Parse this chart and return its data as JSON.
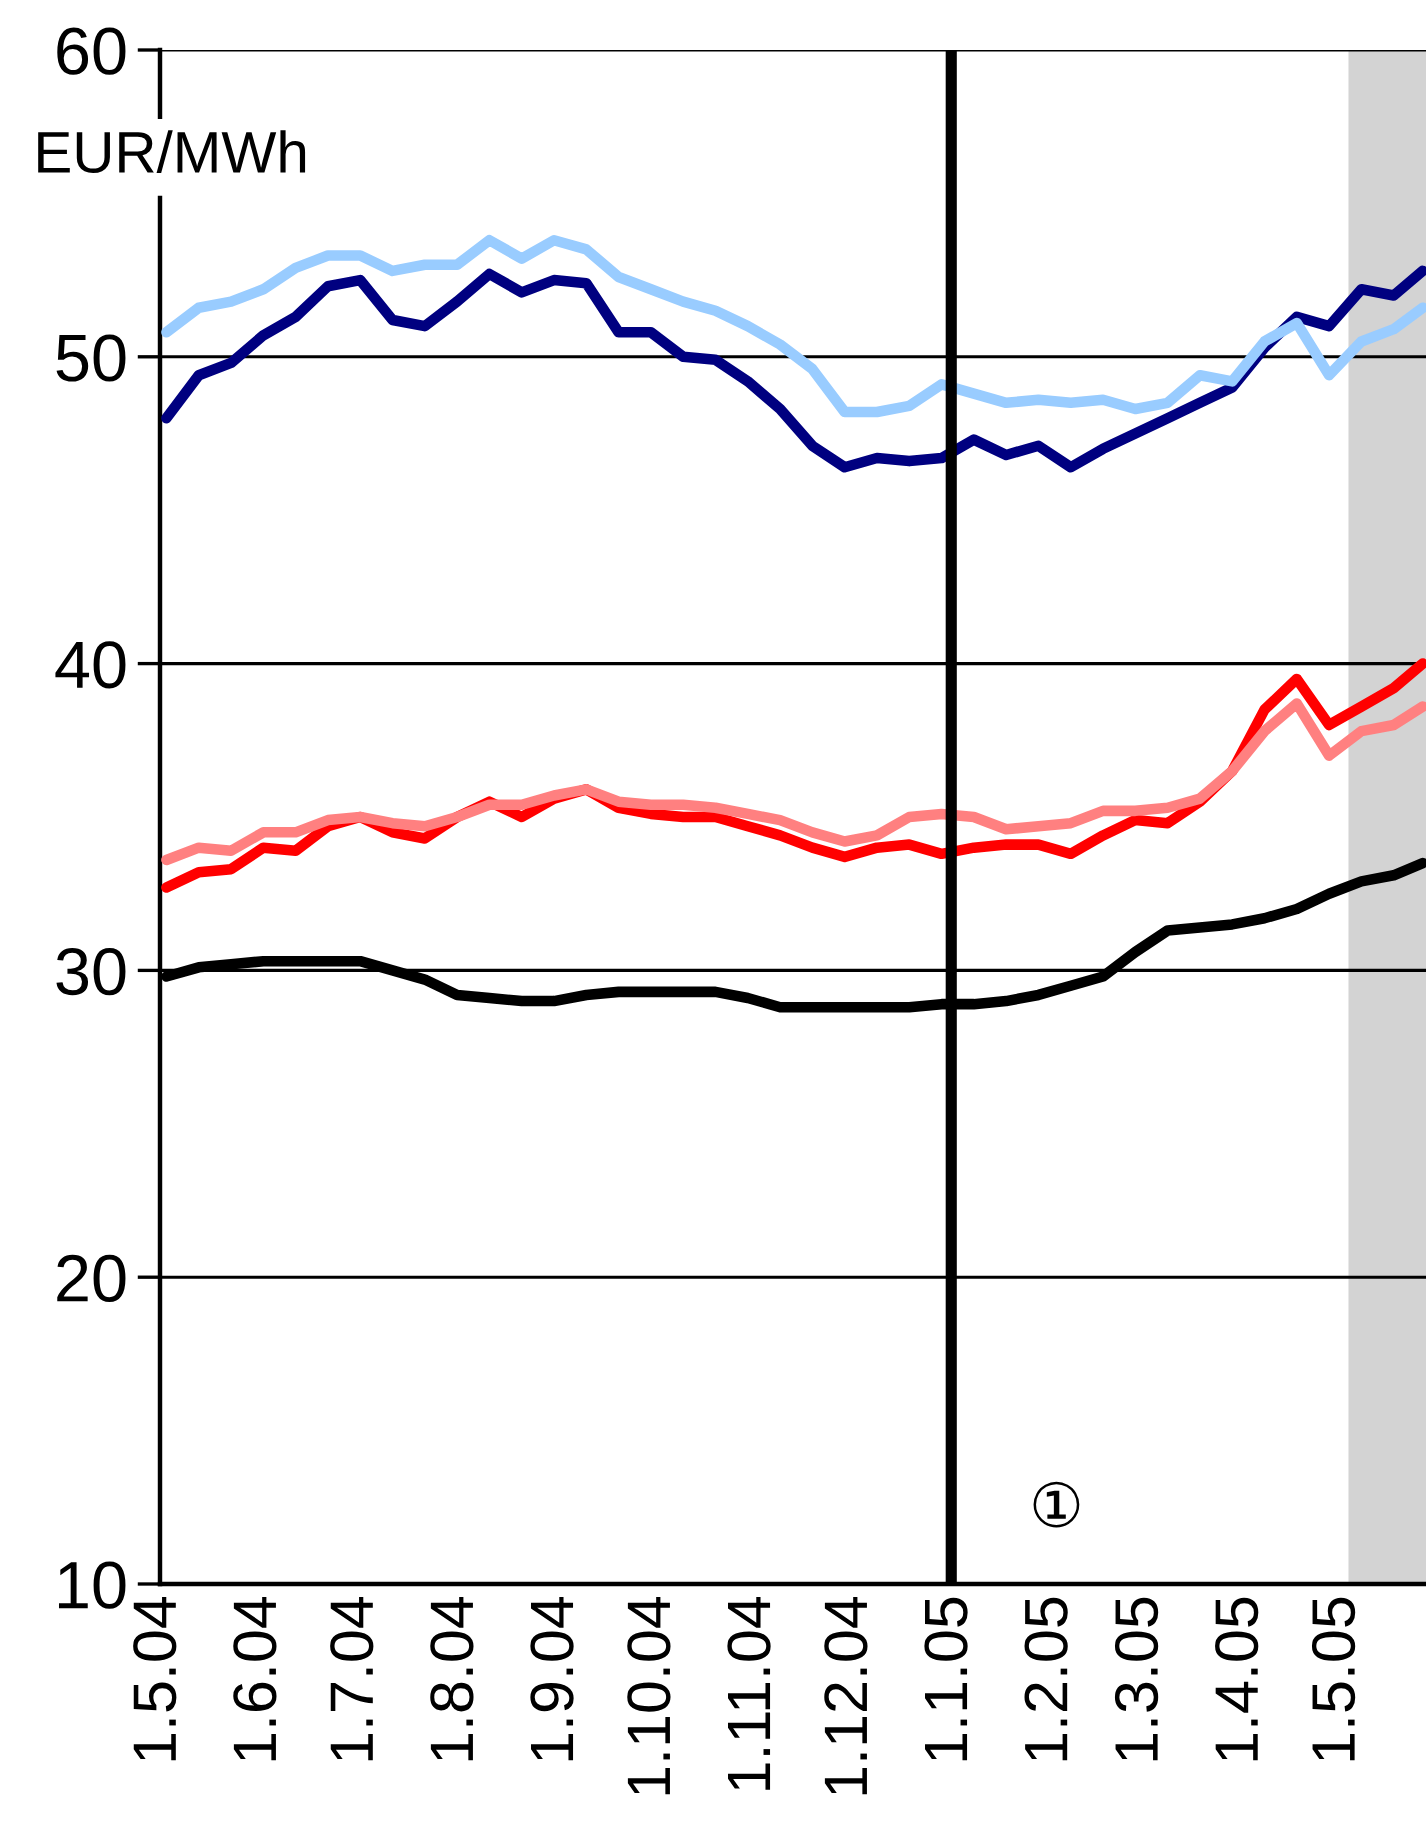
{
  "chart_data": {
    "type": "line",
    "ylabel": "EUR/MWh",
    "x": [
      "2004-05-03",
      "2004-05-13",
      "2004-05-23",
      "2004-06-02",
      "2004-06-12",
      "2004-06-22",
      "2004-07-02",
      "2004-07-12",
      "2004-07-22",
      "2004-08-01",
      "2004-08-11",
      "2004-08-21",
      "2004-08-31",
      "2004-09-10",
      "2004-09-20",
      "2004-09-30",
      "2004-10-10",
      "2004-10-20",
      "2004-10-30",
      "2004-11-09",
      "2004-11-19",
      "2004-11-29",
      "2004-12-09",
      "2004-12-19",
      "2004-12-29",
      "2005-01-08",
      "2005-01-18",
      "2005-01-28",
      "2005-02-07",
      "2005-02-17",
      "2005-02-27",
      "2005-03-09",
      "2005-03-19",
      "2005-03-29",
      "2005-04-08",
      "2005-04-18",
      "2005-04-28",
      "2005-05-08",
      "2005-05-18",
      "2005-05-27"
    ],
    "series": [
      {
        "color": "#000080",
        "values": [
          48.0,
          49.4,
          49.8,
          50.7,
          51.3,
          52.3,
          52.5,
          51.2,
          51.0,
          51.8,
          52.7,
          52.1,
          52.5,
          52.4,
          50.8,
          50.8,
          50.0,
          49.9,
          49.2,
          48.3,
          47.1,
          46.4,
          46.7,
          46.6,
          46.7,
          47.3,
          46.8,
          47.1,
          46.4,
          47.0,
          47.5,
          48.0,
          48.5,
          49.0,
          50.3,
          51.3,
          51.0,
          52.2,
          52.0,
          52.8
        ]
      },
      {
        "color": "#99ccff",
        "values": [
          50.8,
          51.6,
          51.8,
          52.2,
          52.9,
          53.3,
          53.3,
          52.8,
          53.0,
          53.0,
          53.8,
          53.2,
          53.8,
          53.5,
          52.6,
          52.2,
          51.8,
          51.5,
          51.0,
          50.4,
          49.6,
          48.2,
          48.2,
          48.4,
          49.1,
          48.8,
          48.5,
          48.6,
          48.5,
          48.6,
          48.3,
          48.5,
          49.4,
          49.2,
          50.5,
          51.1,
          49.4,
          50.5,
          50.9,
          51.6
        ]
      },
      {
        "color": "#ff0000",
        "values": [
          32.7,
          33.2,
          33.3,
          34.0,
          33.9,
          34.7,
          35.0,
          34.5,
          34.3,
          35.0,
          35.5,
          35.0,
          35.6,
          35.9,
          35.3,
          35.1,
          35.0,
          35.0,
          34.7,
          34.4,
          34.0,
          33.7,
          34.0,
          34.1,
          33.8,
          34.0,
          34.1,
          34.1,
          33.8,
          34.4,
          34.9,
          34.8,
          35.5,
          36.5,
          38.5,
          39.5,
          38.0,
          38.6,
          39.2,
          40.0
        ]
      },
      {
        "color": "#ff8080",
        "values": [
          33.6,
          34.0,
          33.9,
          34.5,
          34.5,
          34.9,
          35.0,
          34.8,
          34.7,
          35.0,
          35.4,
          35.4,
          35.7,
          35.9,
          35.5,
          35.4,
          35.4,
          35.3,
          35.1,
          34.9,
          34.5,
          34.2,
          34.4,
          35.0,
          35.1,
          35.0,
          34.6,
          34.7,
          34.8,
          35.2,
          35.2,
          35.3,
          35.6,
          36.5,
          37.8,
          38.7,
          37.0,
          37.8,
          38.0,
          38.6
        ]
      },
      {
        "color": "#000000",
        "values": [
          29.8,
          30.1,
          30.2,
          30.3,
          30.3,
          30.3,
          30.3,
          30.0,
          29.7,
          29.2,
          29.1,
          29.0,
          29.0,
          29.2,
          29.3,
          29.3,
          29.3,
          29.3,
          29.1,
          28.8,
          28.8,
          28.8,
          28.8,
          28.8,
          28.9,
          28.9,
          29.0,
          29.2,
          29.5,
          29.8,
          30.6,
          31.3,
          31.4,
          31.5,
          31.7,
          32.0,
          32.5,
          32.9,
          33.1,
          33.5
        ]
      }
    ],
    "xlim": [
      "2004-05-01",
      "2005-05-28"
    ],
    "xticks": [
      {
        "value": "2004-05-01",
        "label": "1.5.04"
      },
      {
        "value": "2004-06-01",
        "label": "1.6.04"
      },
      {
        "value": "2004-07-01",
        "label": "1.7.04"
      },
      {
        "value": "2004-08-01",
        "label": "1.8.04"
      },
      {
        "value": "2004-09-01",
        "label": "1.9.04"
      },
      {
        "value": "2004-10-01",
        "label": "1.10.04"
      },
      {
        "value": "2004-11-01",
        "label": "1.11.04"
      },
      {
        "value": "2004-12-01",
        "label": "1.12.04"
      },
      {
        "value": "2005-01-01",
        "label": "1.1.05"
      },
      {
        "value": "2005-02-01",
        "label": "1.2.05"
      },
      {
        "value": "2005-03-01",
        "label": "1.3.05"
      },
      {
        "value": "2005-04-01",
        "label": "1.4.05"
      },
      {
        "value": "2005-05-01",
        "label": "1.5.05"
      }
    ],
    "ylim": [
      10,
      60
    ],
    "yticks": [
      10,
      20,
      30,
      40,
      50,
      60
    ],
    "grid": "y",
    "ref_lines": [
      {
        "axis": "x",
        "value": "2005-01-01",
        "label": "①",
        "color": "#000000"
      }
    ],
    "bands": [
      {
        "axis": "x",
        "from": "2005-05-04",
        "to": "2005-05-28",
        "color": "#d3d3d3"
      }
    ]
  }
}
